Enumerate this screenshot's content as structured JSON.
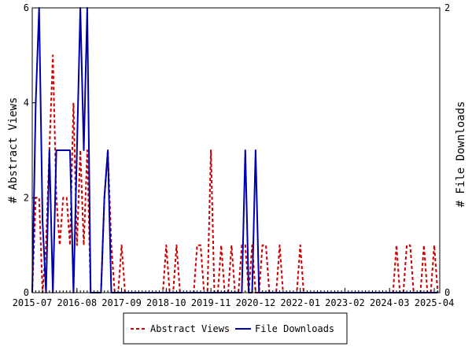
{
  "chart_data": {
    "type": "line",
    "x_tick_labels": [
      "2015-07",
      "2016-08",
      "2017-09",
      "2018-10",
      "2019-11",
      "2020-12",
      "2022-01",
      "2023-02",
      "2024-03",
      "2025-04"
    ],
    "ylabel_left": "# Abstract Views",
    "ylabel_right": "# File Downloads",
    "ylim_left": [
      0,
      6
    ],
    "ylim_right": [
      0,
      2
    ],
    "yticks_left": [
      0,
      2,
      4,
      6
    ],
    "yticks_right": [
      0,
      2
    ],
    "legend_position": "bottom-center",
    "grid": false,
    "series": [
      {
        "name": "Abstract Views",
        "axis": "left",
        "color": "#cc0000",
        "line_style": "dashed",
        "x": [
          "2015-07",
          "2015-08",
          "2015-09",
          "2015-10",
          "2015-11",
          "2015-12",
          "2016-01",
          "2016-02",
          "2016-03",
          "2016-04",
          "2016-05",
          "2016-06",
          "2016-07",
          "2016-08",
          "2016-09",
          "2016-10",
          "2016-11",
          "2016-12",
          "2017-01",
          "2017-02",
          "2017-03",
          "2017-04",
          "2017-05",
          "2017-06",
          "2017-07",
          "2017-08",
          "2017-09",
          "2017-10",
          "2017-11",
          "2017-12",
          "2018-01",
          "2018-02",
          "2018-03",
          "2018-04",
          "2018-05",
          "2018-06",
          "2018-07",
          "2018-08",
          "2018-09",
          "2018-10",
          "2018-11",
          "2018-12",
          "2019-01",
          "2019-02",
          "2019-03",
          "2019-04",
          "2019-05",
          "2019-06",
          "2019-07",
          "2019-08",
          "2019-09",
          "2019-10",
          "2019-11",
          "2019-12",
          "2020-01",
          "2020-02",
          "2020-03",
          "2020-04",
          "2020-05",
          "2020-06",
          "2020-07",
          "2020-08",
          "2020-09",
          "2020-10",
          "2020-11",
          "2020-12",
          "2021-01",
          "2021-02",
          "2021-03",
          "2021-04",
          "2021-05",
          "2021-06",
          "2021-07",
          "2021-08",
          "2021-09",
          "2021-10",
          "2021-11",
          "2021-12",
          "2022-01",
          "2022-02",
          "2022-03",
          "2022-04",
          "2022-05",
          "2022-06",
          "2022-07",
          "2022-08",
          "2022-09",
          "2022-10",
          "2022-11",
          "2022-12",
          "2023-01",
          "2023-02",
          "2023-03",
          "2023-04",
          "2023-05",
          "2023-06",
          "2023-07",
          "2023-08",
          "2023-09",
          "2023-10",
          "2023-11",
          "2023-12",
          "2024-01",
          "2024-02",
          "2024-03",
          "2024-04",
          "2024-05",
          "2024-06",
          "2024-07",
          "2024-08",
          "2024-09",
          "2024-10",
          "2024-11",
          "2024-12",
          "2025-01",
          "2025-02",
          "2025-03",
          "2025-04",
          "2025-05"
        ],
        "values": [
          0,
          2,
          2,
          0,
          1,
          3,
          5,
          2,
          1,
          2,
          2,
          1,
          4,
          1,
          3,
          1,
          3,
          0,
          0,
          0,
          0,
          2,
          3,
          1,
          0,
          0,
          1,
          0,
          0,
          0,
          0,
          0,
          0,
          0,
          0,
          0,
          0,
          0,
          0,
          1,
          0,
          0,
          1,
          0,
          0,
          0,
          0,
          0,
          1,
          1,
          0,
          0,
          3,
          0,
          0,
          1,
          0,
          0,
          1,
          0,
          0,
          1,
          1,
          0,
          1,
          0,
          0,
          1,
          1,
          0,
          0,
          0,
          1,
          0,
          0,
          0,
          0,
          0,
          1,
          0,
          0,
          0,
          0,
          0,
          0,
          0,
          0,
          0,
          0,
          0,
          0,
          0,
          0,
          0,
          0,
          0,
          0,
          0,
          0,
          0,
          0,
          0,
          0,
          0,
          0,
          0,
          1,
          0,
          0,
          1,
          1,
          0,
          0,
          0,
          1,
          0,
          0,
          1,
          0
        ]
      },
      {
        "name": "File Downloads",
        "axis": "right",
        "color": "#0000aa",
        "line_style": "solid",
        "x": [
          "2015-07",
          "2015-08",
          "2015-09",
          "2015-10",
          "2015-11",
          "2015-12",
          "2016-01",
          "2016-02",
          "2016-03",
          "2016-04",
          "2016-05",
          "2016-06",
          "2016-07",
          "2016-08",
          "2016-09",
          "2016-10",
          "2016-11",
          "2016-12",
          "2017-01",
          "2017-02",
          "2017-03",
          "2017-04",
          "2017-05",
          "2017-06",
          "2017-07",
          "2017-08",
          "2017-09",
          "2017-10",
          "2017-11",
          "2017-12",
          "2018-01",
          "2018-02",
          "2018-03",
          "2018-04",
          "2018-05",
          "2018-06",
          "2018-07",
          "2018-08",
          "2018-09",
          "2018-10",
          "2018-11",
          "2018-12",
          "2019-01",
          "2019-02",
          "2019-03",
          "2019-04",
          "2019-05",
          "2019-06",
          "2019-07",
          "2019-08",
          "2019-09",
          "2019-10",
          "2019-11",
          "2019-12",
          "2020-01",
          "2020-02",
          "2020-03",
          "2020-04",
          "2020-05",
          "2020-06",
          "2020-07",
          "2020-08",
          "2020-09",
          "2020-10",
          "2020-11",
          "2020-12",
          "2021-01",
          "2021-02",
          "2021-03",
          "2021-04",
          "2021-05",
          "2021-06",
          "2021-07",
          "2021-08",
          "2021-09",
          "2021-10",
          "2021-11",
          "2021-12",
          "2022-01",
          "2022-02",
          "2022-03",
          "2022-04",
          "2022-05",
          "2022-06",
          "2022-07",
          "2022-08",
          "2022-09",
          "2022-10",
          "2022-11",
          "2022-12",
          "2023-01",
          "2023-02",
          "2023-03",
          "2023-04",
          "2023-05",
          "2023-06",
          "2023-07",
          "2023-08",
          "2023-09",
          "2023-10",
          "2023-11",
          "2023-12",
          "2024-01",
          "2024-02",
          "2024-03",
          "2024-04",
          "2024-05",
          "2024-06",
          "2024-07",
          "2024-08",
          "2024-09",
          "2024-10",
          "2024-11",
          "2024-12",
          "2025-01",
          "2025-02",
          "2025-03",
          "2025-04",
          "2025-05"
        ],
        "values": [
          0,
          1.33,
          2,
          0.5,
          0,
          1,
          0,
          1,
          1,
          1,
          1,
          1,
          0,
          1,
          2,
          1,
          2,
          0,
          0,
          0,
          0,
          0.67,
          1,
          0,
          0,
          0,
          0,
          0,
          0,
          0,
          0,
          0,
          0,
          0,
          0,
          0,
          0,
          0,
          0,
          0,
          0,
          0,
          0,
          0,
          0,
          0,
          0,
          0,
          0,
          0,
          0,
          0,
          0,
          0,
          0,
          0,
          0,
          0,
          0,
          0,
          0,
          0,
          1,
          0,
          0,
          1,
          0,
          0,
          0,
          0,
          0,
          0,
          0,
          0,
          0,
          0,
          0,
          0,
          0,
          0,
          0,
          0,
          0,
          0,
          0,
          0,
          0,
          0,
          0,
          0,
          0,
          0,
          0,
          0,
          0,
          0,
          0,
          0,
          0,
          0,
          0,
          0,
          0,
          0,
          0,
          0,
          0,
          0,
          0,
          0,
          0,
          0,
          0,
          0,
          0,
          0,
          0,
          0,
          0
        ]
      }
    ]
  }
}
